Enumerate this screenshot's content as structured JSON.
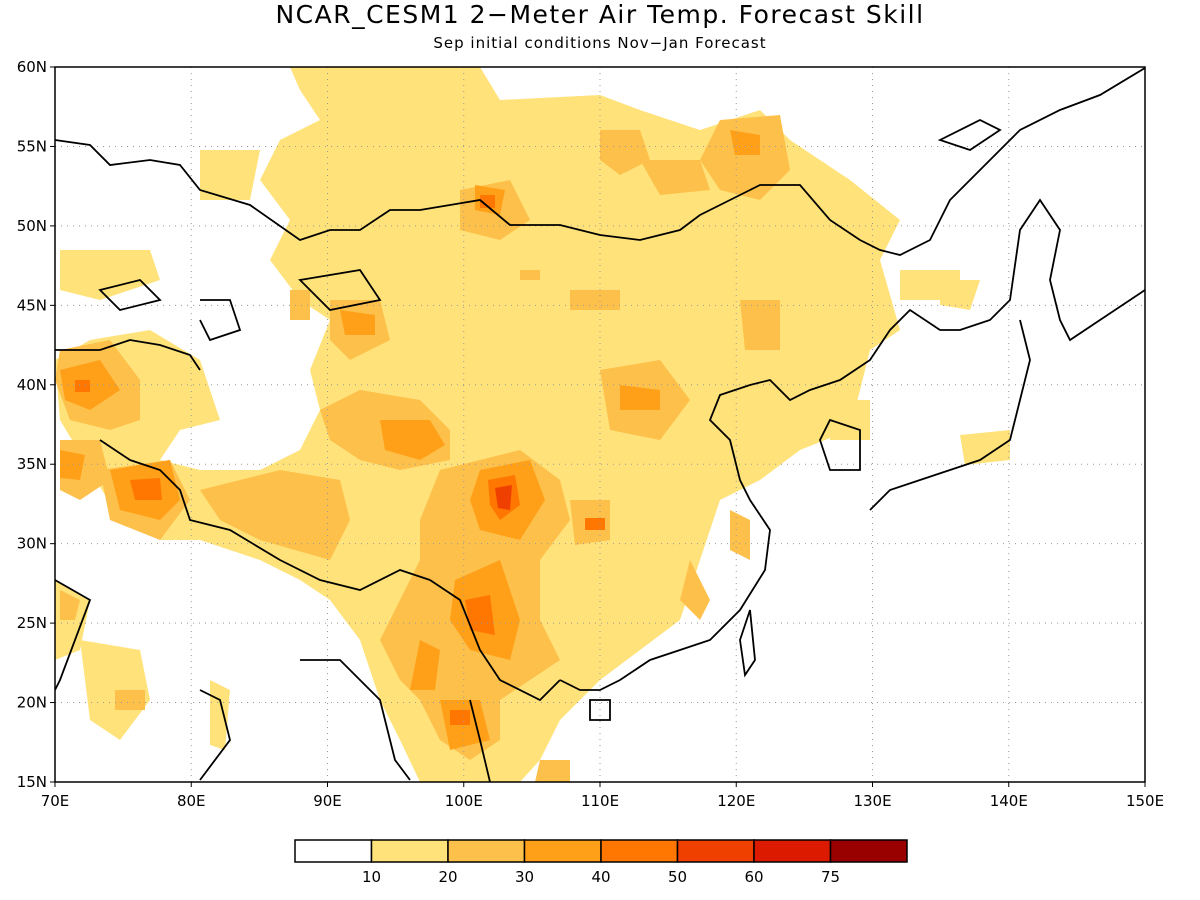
{
  "title": "NCAR_CESM1 2−Meter Air Temp. Forecast Skill",
  "subtitle": "Sep initial conditions  Nov−Jan Forecast",
  "map": {
    "lon_range": [
      70,
      150
    ],
    "lat_range": [
      15,
      60
    ],
    "lat_ticks": [
      "15N",
      "20N",
      "25N",
      "30N",
      "35N",
      "40N",
      "45N",
      "50N",
      "55N",
      "60N"
    ],
    "lon_ticks": [
      "70E",
      "80E",
      "90E",
      "100E",
      "110E",
      "120E",
      "130E",
      "140E",
      "150E"
    ],
    "grid": "dotted"
  },
  "colorbar": {
    "colors": [
      "#ffffff",
      "#ffe27a",
      "#fdc04a",
      "#ffa018",
      "#ff7600",
      "#f04000",
      "#dc1a00",
      "#990000"
    ],
    "labels": [
      "10",
      "20",
      "30",
      "40",
      "50",
      "60",
      "75"
    ]
  }
}
